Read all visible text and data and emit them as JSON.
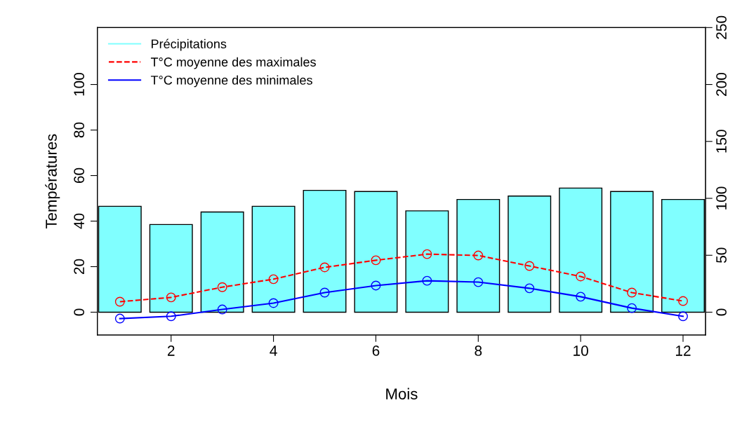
{
  "chart_data": {
    "type": "line",
    "xlabel": "Mois",
    "ylabel": "Températures",
    "x": [
      1,
      2,
      3,
      4,
      5,
      6,
      7,
      8,
      9,
      10,
      11,
      12
    ],
    "series": [
      {
        "name": "Précipitations",
        "type": "bar",
        "axis": "y2",
        "color": "#80ffff",
        "values": [
          93,
          77,
          88,
          93,
          107,
          106,
          89,
          99,
          102,
          109,
          106,
          99
        ]
      },
      {
        "name": "T°C moyenne des maximales",
        "color": "#ff0000",
        "line_style": "dashed",
        "values": [
          4.6,
          6.5,
          11,
          14.5,
          19.7,
          22.8,
          25.5,
          24.9,
          20.3,
          15.7,
          8.6,
          4.9
        ]
      },
      {
        "name": "T°C moyenne des minimales",
        "color": "#0000ff",
        "line_style": "solid",
        "values": [
          -2.8,
          -1.8,
          1.2,
          4,
          8.6,
          11.7,
          13.8,
          13.2,
          10.5,
          6.8,
          1.8,
          -1.8
        ]
      }
    ],
    "marker": "circle",
    "legend": "top left",
    "grid": false,
    "xlim": [
      0.56,
      12.44
    ],
    "xticks": [
      2,
      4,
      6,
      8,
      10,
      12
    ],
    "ylim": [
      -10,
      125
    ],
    "yticks": [
      0,
      20,
      40,
      60,
      80,
      100
    ],
    "y2lim": [
      -20,
      250
    ],
    "y2ticks": [
      0,
      50,
      100,
      150,
      200,
      250
    ]
  }
}
